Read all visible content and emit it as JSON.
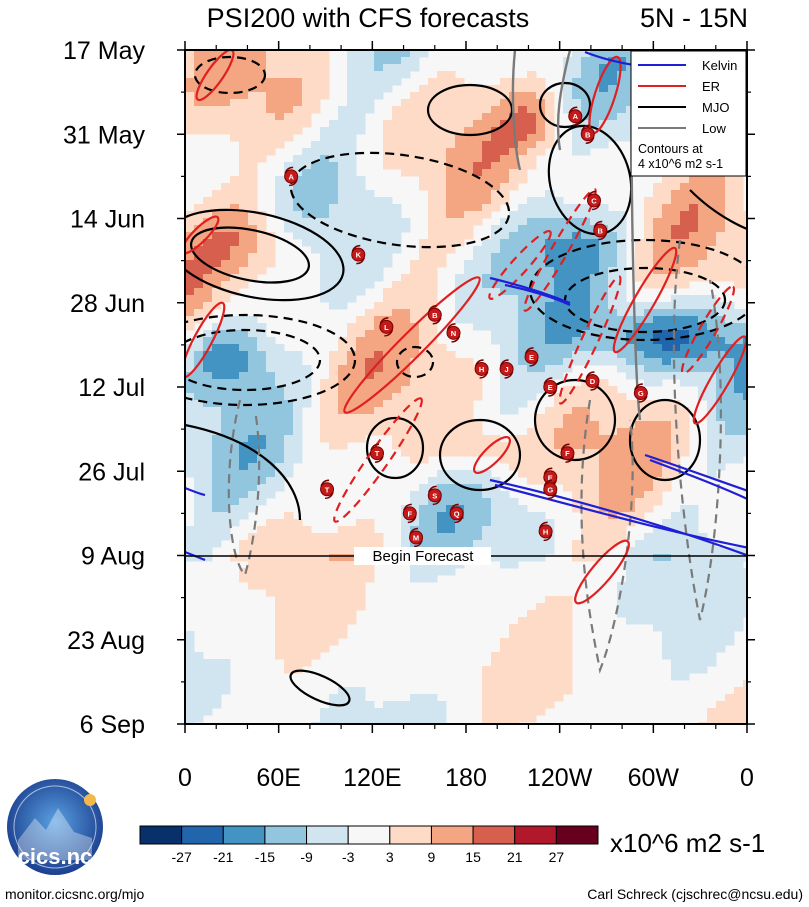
{
  "chart_data": {
    "type": "heatmap",
    "title": "PSI200 with CFS forecasts",
    "subtitle": "5N - 15N",
    "x_tick_labels": [
      "0",
      "60E",
      "120E",
      "180",
      "120W",
      "60W",
      "0"
    ],
    "y_tick_labels": [
      "17 May",
      "31 May",
      "14 Jun",
      "28 Jun",
      "12 Jul",
      "26 Jul",
      "9 Aug",
      "23 Aug",
      "6 Sep"
    ],
    "xlim_degrees_east": [
      0,
      360
    ],
    "ylim_days_from_17_May": [
      0,
      112
    ],
    "forecast_start_label": "Begin Forecast",
    "forecast_start_day": 84,
    "colorbar": {
      "ticks": [
        "-27",
        "-21",
        "-15",
        "-9",
        "-3",
        "3",
        "9",
        "15",
        "21",
        "27"
      ],
      "units": "x10^6 m2 s-1",
      "colors": [
        "#08306b",
        "#2166ac",
        "#4393c3",
        "#92c5de",
        "#d1e5f0",
        "#f7f7f7",
        "#fddbc7",
        "#f4a582",
        "#d6604d",
        "#b2182b",
        "#67001f"
      ]
    },
    "legend": {
      "placement": "top-right",
      "entries": [
        {
          "label": "Kelvin",
          "color": "#1f1fd6"
        },
        {
          "label": "ER",
          "color": "#e02020"
        },
        {
          "label": "MJO",
          "color": "#000000"
        },
        {
          "label": "Low",
          "color": "#7a7a7a"
        }
      ],
      "note_line1": "Contours at",
      "note_line2": "4 x10^6 m2 s-1"
    },
    "storms": [
      {
        "letter": "A",
        "lon": 68,
        "day": 21
      },
      {
        "letter": "K",
        "lon": 111,
        "day": 34
      },
      {
        "letter": "L",
        "lon": 129,
        "day": 46
      },
      {
        "letter": "B",
        "lon": 160,
        "day": 44
      },
      {
        "letter": "N",
        "lon": 172,
        "day": 47
      },
      {
        "letter": "H",
        "lon": 190,
        "day": 53
      },
      {
        "letter": "J",
        "lon": 206,
        "day": 53
      },
      {
        "letter": "E",
        "lon": 222,
        "day": 51
      },
      {
        "letter": "T",
        "lon": 123,
        "day": 67
      },
      {
        "letter": "T",
        "lon": 91,
        "day": 73
      },
      {
        "letter": "S",
        "lon": 160,
        "day": 74
      },
      {
        "letter": "F",
        "lon": 144,
        "day": 77
      },
      {
        "letter": "Q",
        "lon": 174,
        "day": 77
      },
      {
        "letter": "M",
        "lon": 148,
        "day": 81
      },
      {
        "letter": "H",
        "lon": 231,
        "day": 80
      },
      {
        "letter": "E",
        "lon": 234,
        "day": 71
      },
      {
        "letter": "G",
        "lon": 234,
        "day": 73
      },
      {
        "letter": "E",
        "lon": 234,
        "day": 56
      },
      {
        "letter": "D",
        "lon": 261,
        "day": 55
      },
      {
        "letter": "F",
        "lon": 245,
        "day": 67
      },
      {
        "letter": "G",
        "lon": 292,
        "day": 57
      },
      {
        "letter": "A",
        "lon": 250,
        "day": 11
      },
      {
        "letter": "B",
        "lon": 258,
        "day": 14
      },
      {
        "letter": "C",
        "lon": 262,
        "day": 25
      },
      {
        "letter": "B",
        "lon": 266,
        "day": 30
      }
    ]
  },
  "footer": {
    "logo_text": "cics.nc",
    "website": "monitor.cicsnc.org/mjo",
    "author": "Carl Schreck (cjschrec@ncsu.edu)"
  }
}
